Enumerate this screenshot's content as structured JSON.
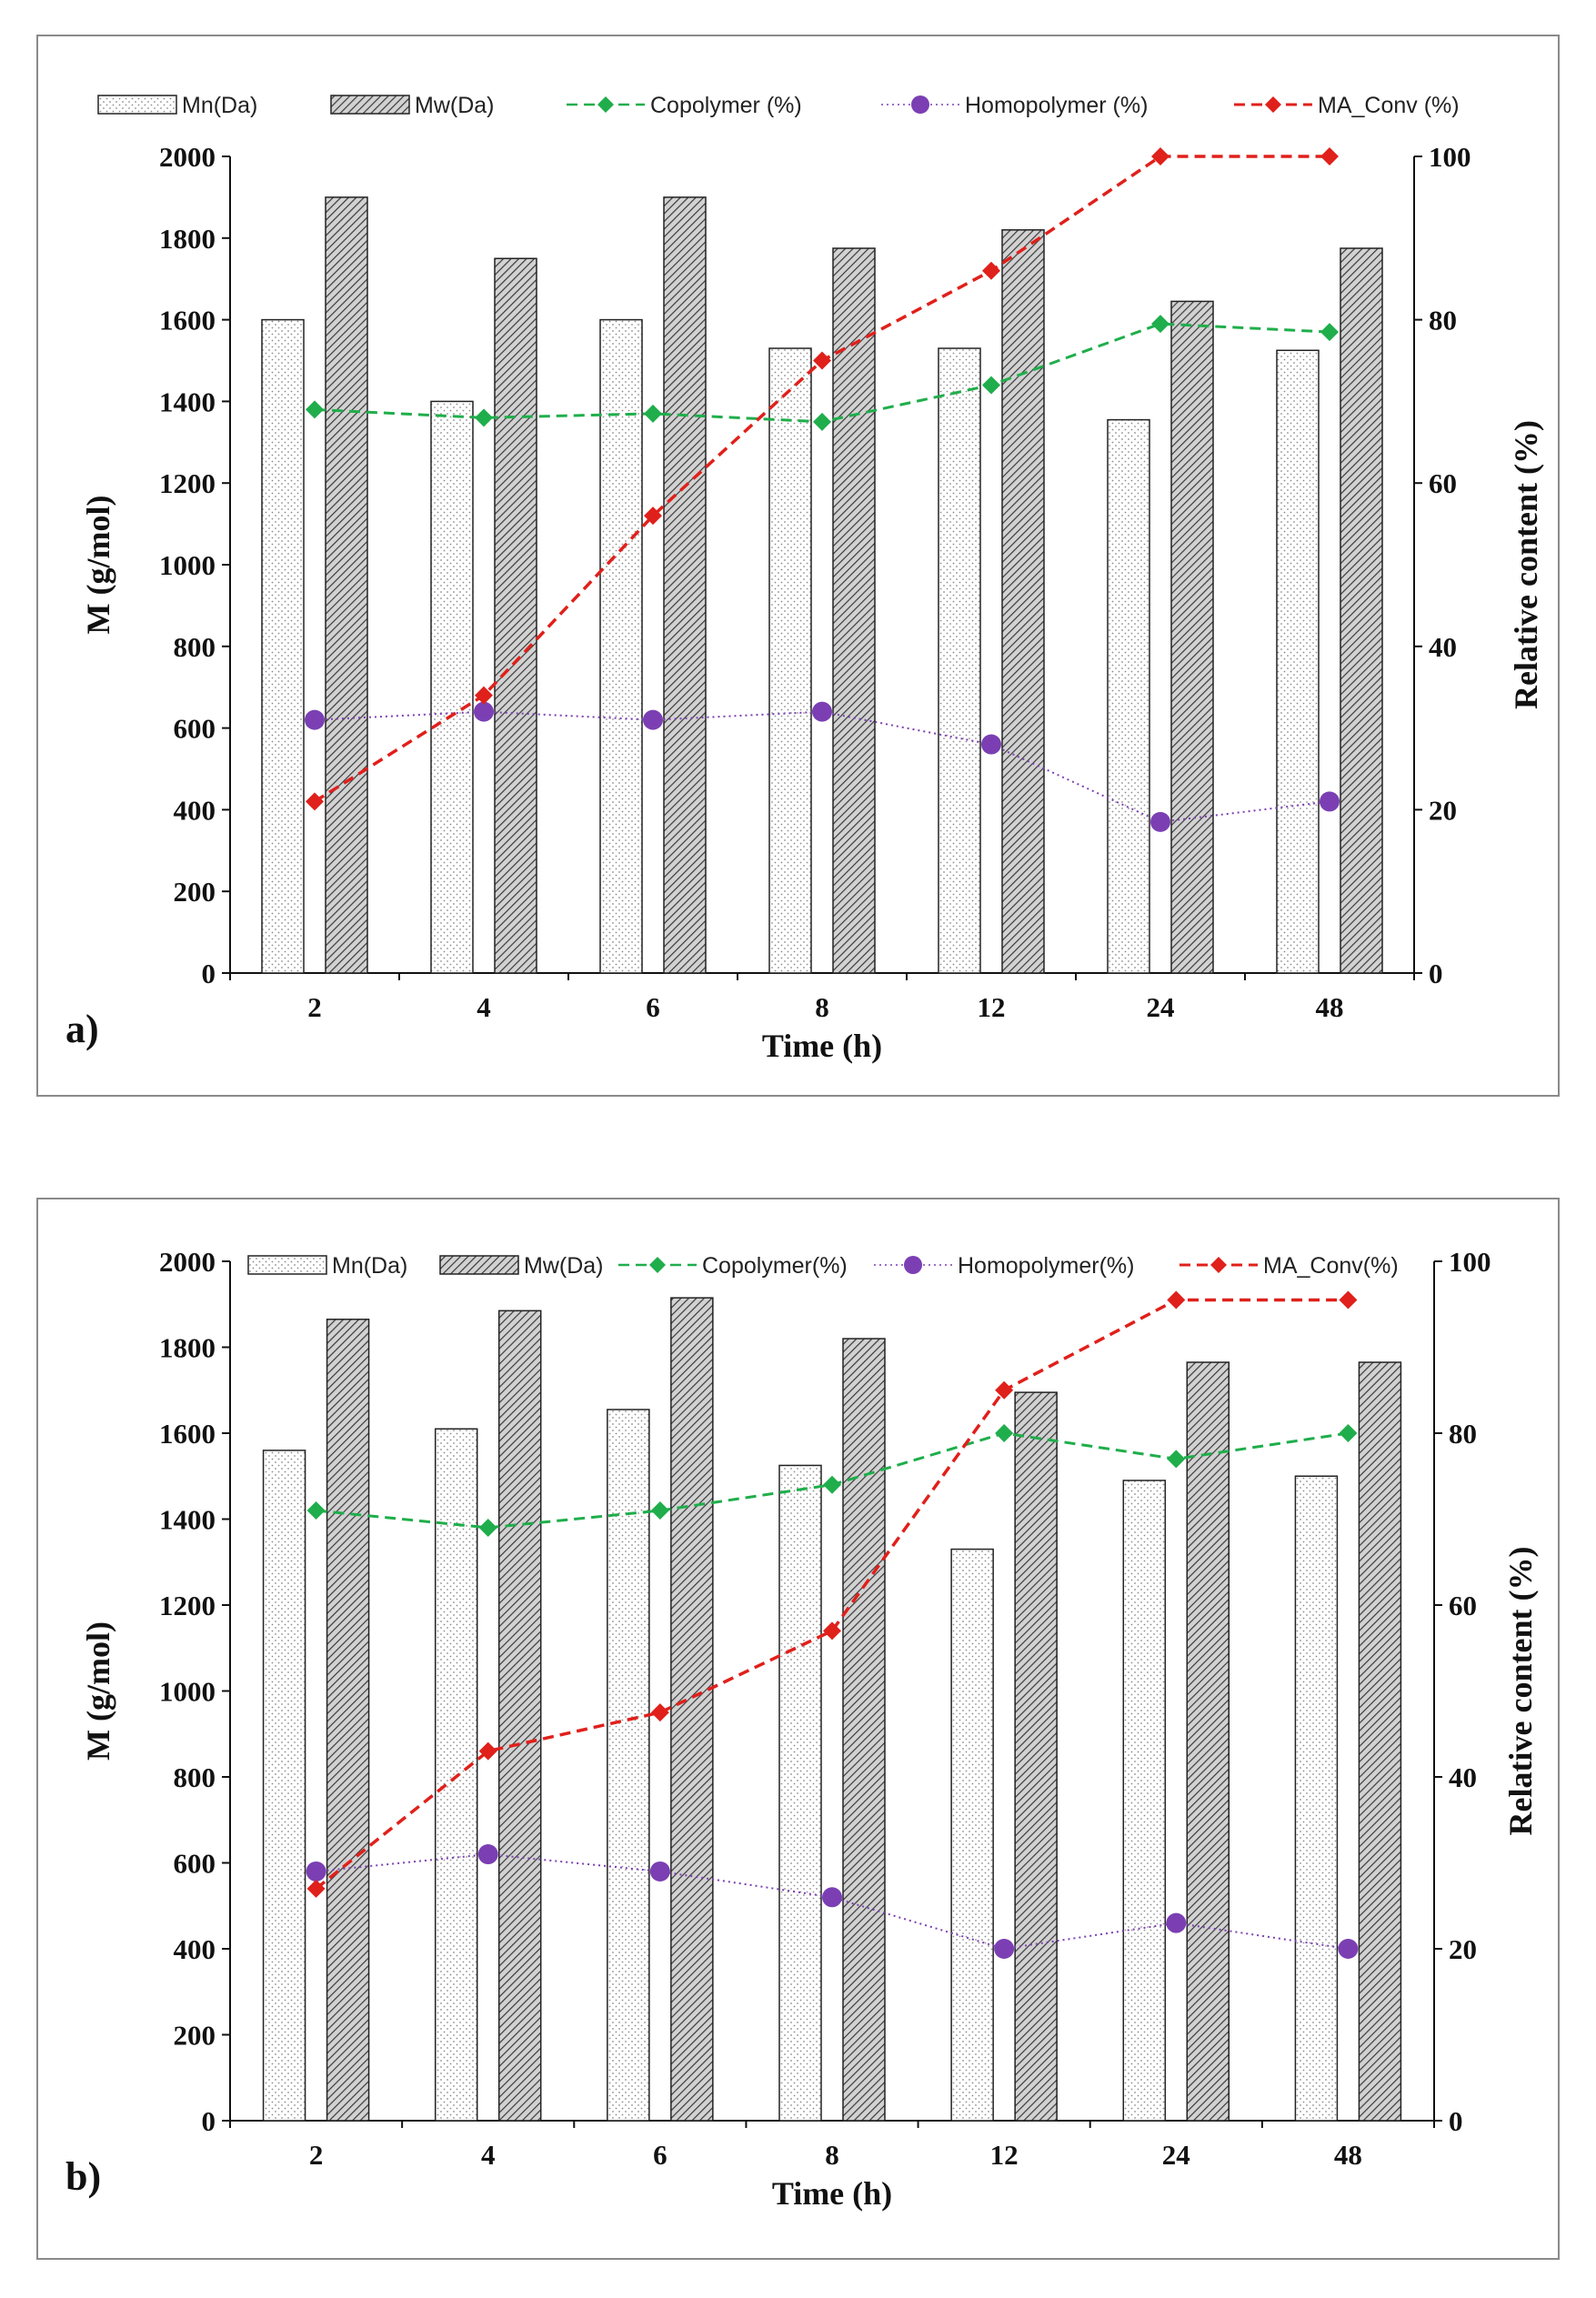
{
  "colors": {
    "copolymer": "#1fae4b",
    "homopolymer": "#7b3fb3",
    "ma_conv": "#e0201b",
    "axis": "#111111",
    "bar_border": "#222222"
  },
  "chart_data": [
    {
      "type": "bar",
      "panel_label": "a)",
      "xlabel": "Time (h)",
      "ylabel": "M (g/mol)",
      "ylabel_right": "Relative content (%)",
      "categories": [
        "2",
        "4",
        "6",
        "8",
        "12",
        "24",
        "48"
      ],
      "ylim": [
        0,
        2000
      ],
      "yticks": [
        "0",
        "200",
        "400",
        "600",
        "800",
        "1000",
        "1200",
        "1400",
        "1600",
        "1800",
        "2000"
      ],
      "ylim_right": [
        0,
        100
      ],
      "yticks_right": [
        "0",
        "20",
        "40",
        "60",
        "80",
        "100"
      ],
      "series": [
        {
          "name": "Mn(Da)",
          "kind": "bar",
          "values": [
            1600,
            1400,
            1600,
            1530,
            1530,
            1355,
            1525
          ]
        },
        {
          "name": "Mw(Da)",
          "kind": "bar",
          "values": [
            1900,
            1750,
            1900,
            1775,
            1820,
            1645,
            1775
          ]
        },
        {
          "name": "Copolymer (%)",
          "kind": "line",
          "axis": "right",
          "values": [
            69,
            68,
            68.5,
            67.5,
            72,
            79.5,
            78.5
          ]
        },
        {
          "name": "Homopolymer (%)",
          "kind": "line",
          "axis": "right",
          "values": [
            31,
            32,
            31,
            32,
            28,
            18.5,
            21
          ]
        },
        {
          "name": "MA_Conv (%)",
          "kind": "line",
          "axis": "right",
          "values": [
            21,
            34,
            56,
            75,
            86,
            100,
            100
          ]
        }
      ]
    },
    {
      "type": "bar",
      "panel_label": "b)",
      "xlabel": "Time (h)",
      "ylabel": "M (g/mol)",
      "ylabel_right": "Relative content (%)",
      "categories": [
        "2",
        "4",
        "6",
        "8",
        "12",
        "24",
        "48"
      ],
      "ylim": [
        0,
        2000
      ],
      "yticks": [
        "0",
        "200",
        "400",
        "600",
        "800",
        "1000",
        "1200",
        "1400",
        "1600",
        "1800",
        "2000"
      ],
      "ylim_right": [
        0,
        100
      ],
      "yticks_right": [
        "0",
        "20",
        "40",
        "60",
        "80",
        "100"
      ],
      "series": [
        {
          "name": "Mn(Da)",
          "kind": "bar",
          "values": [
            1560,
            1610,
            1655,
            1525,
            1330,
            1490,
            1500
          ]
        },
        {
          "name": "Mw(Da)",
          "kind": "bar",
          "values": [
            1865,
            1885,
            1915,
            1820,
            1695,
            1765,
            1765
          ]
        },
        {
          "name": "Copolymer(%)",
          "kind": "line",
          "axis": "right",
          "values": [
            71,
            69,
            71,
            74,
            80,
            77,
            80
          ]
        },
        {
          "name": "Homopolymer(%)",
          "kind": "line",
          "axis": "right",
          "values": [
            29,
            31,
            29,
            26,
            20,
            23,
            20
          ]
        },
        {
          "name": "MA_Conv(%)",
          "kind": "line",
          "axis": "right",
          "values": [
            27,
            43,
            47.5,
            57,
            85,
            95.5,
            95.5
          ]
        }
      ]
    }
  ]
}
